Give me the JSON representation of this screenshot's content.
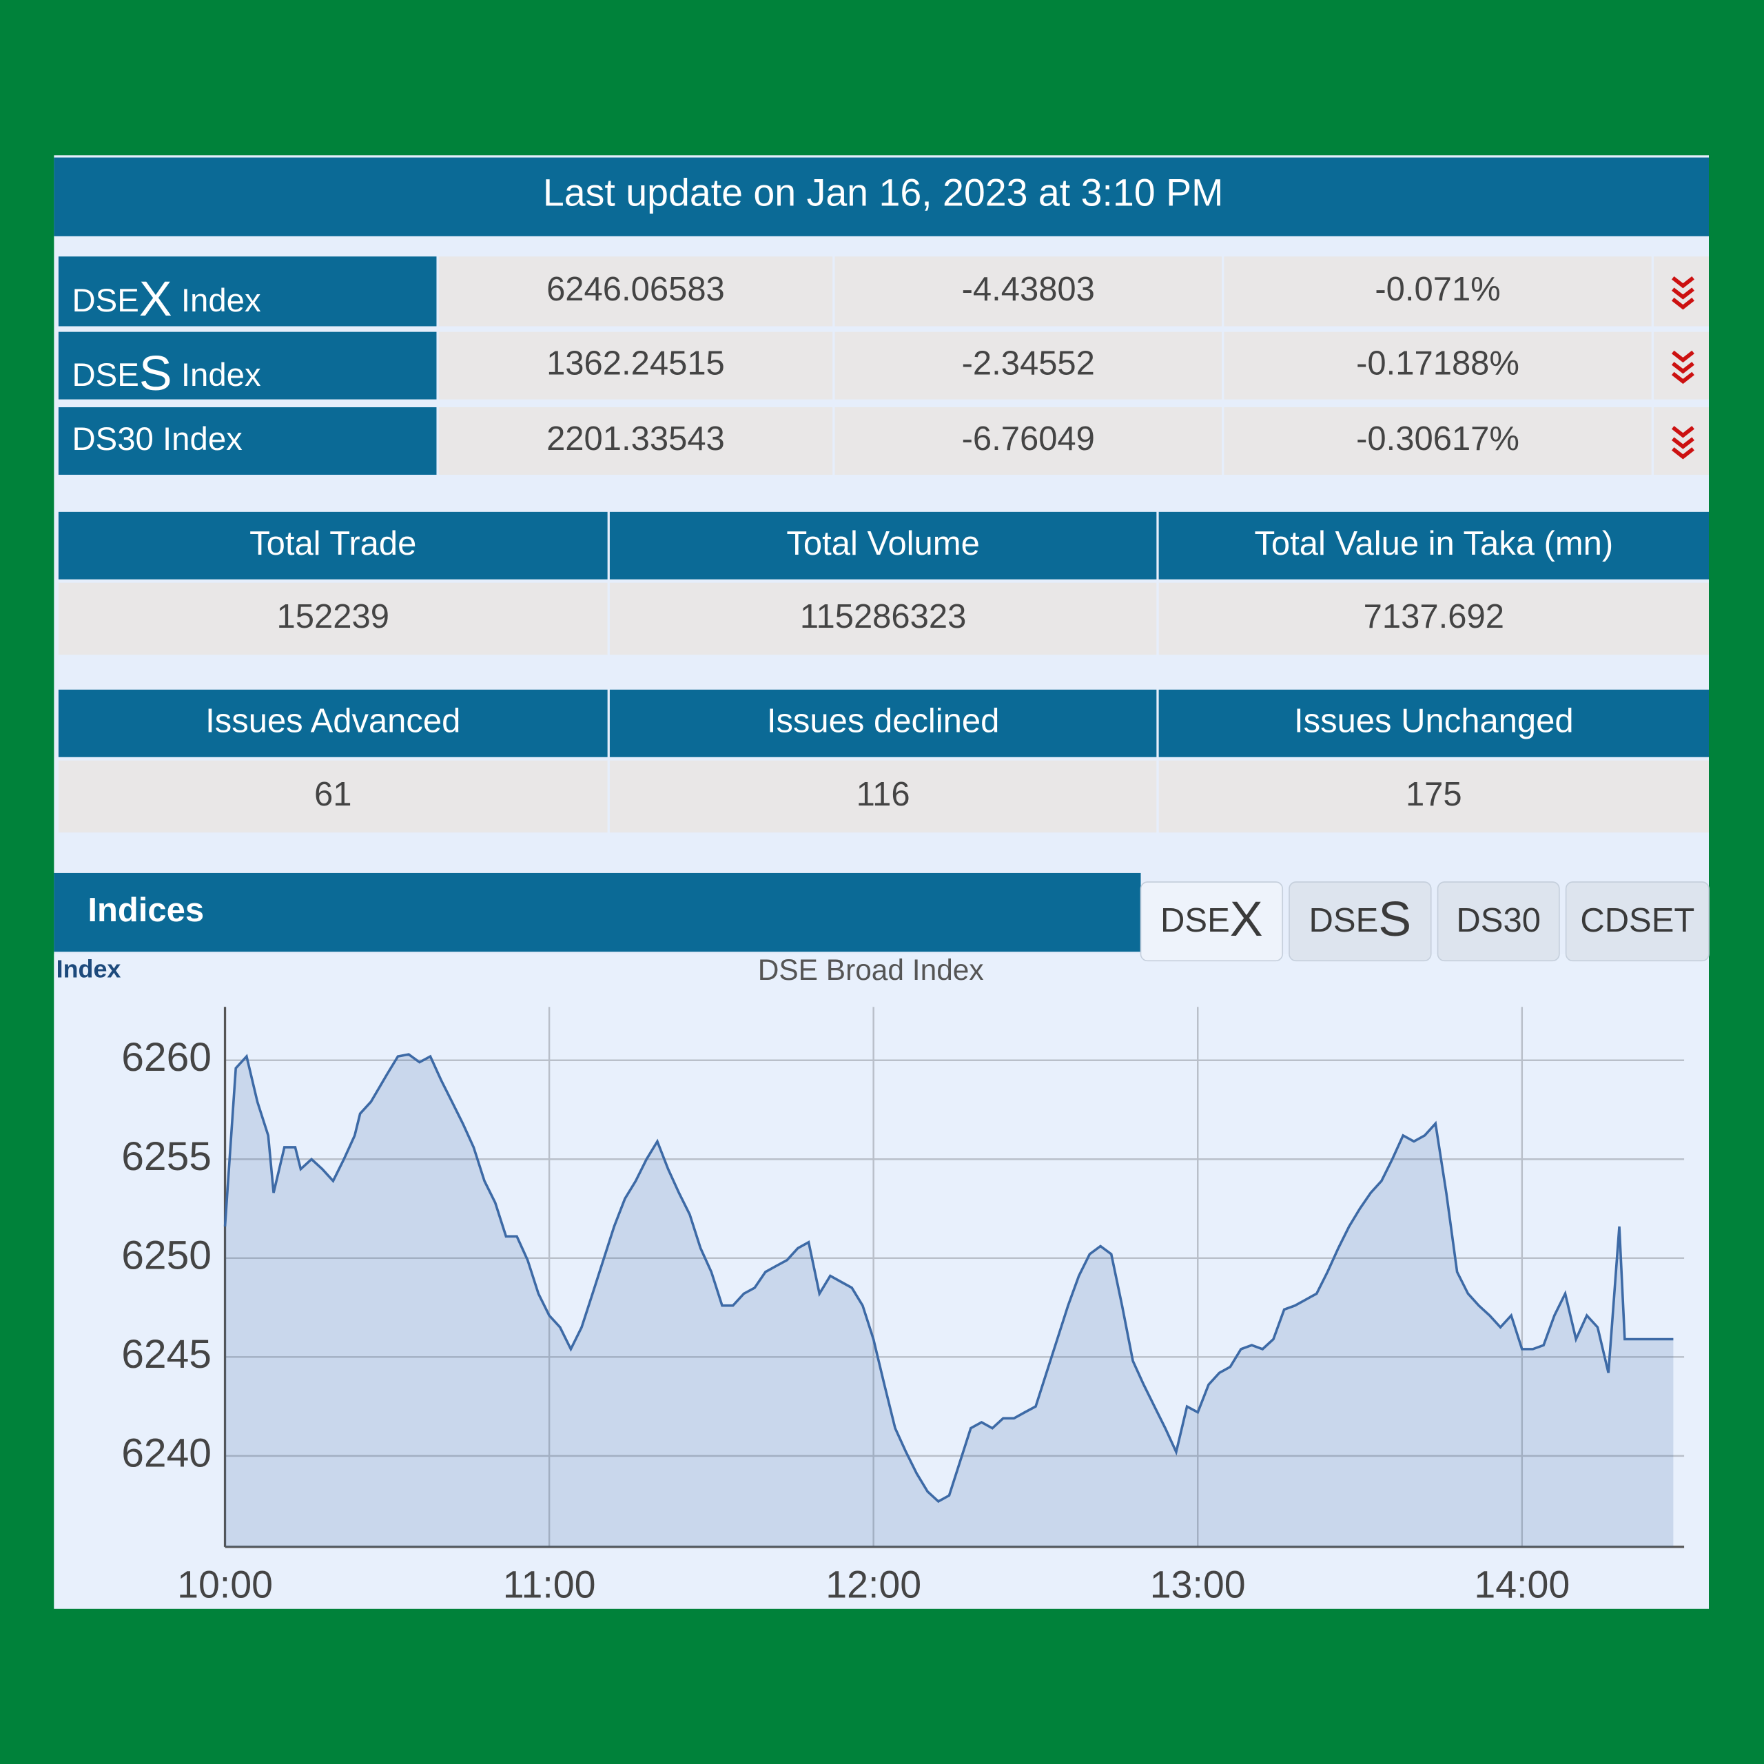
{
  "header": {
    "title": "Last update on Jan 16, 2023 at 3:10 PM"
  },
  "indices": [
    {
      "name": [
        "DSE",
        "X",
        " Index"
      ],
      "value": "6246.06583",
      "change": "-4.43803",
      "percent": "-0.071%"
    },
    {
      "name": [
        "DSE",
        "S",
        " Index"
      ],
      "value": "1362.24515",
      "change": "-2.34552",
      "percent": "-0.17188%"
    },
    {
      "name": [
        "DS30 Index"
      ],
      "value": "2201.33543",
      "change": "-6.76049",
      "percent": "-0.30617%"
    }
  ],
  "stats": [
    {
      "headers": [
        "Total Trade",
        "Total Volume",
        "Total Value in Taka (mn)"
      ],
      "values": [
        "152239",
        "115286323",
        "7137.692"
      ]
    },
    {
      "headers": [
        "Issues Advanced",
        "Issues declined",
        "Issues Unchanged"
      ],
      "values": [
        "61",
        "116",
        "175"
      ]
    }
  ],
  "section": {
    "title": "Indices",
    "tabs": [
      [
        "DSE",
        "X"
      ],
      [
        "DSE",
        "S"
      ],
      [
        "DS30"
      ],
      [
        "CDSET"
      ]
    ]
  },
  "chart_data": {
    "type": "line",
    "title": "DSE Broad Index",
    "y_label": "Index",
    "color": "#3d6aa6",
    "grid": true,
    "xlim": [
      "10:00",
      "14:30"
    ],
    "xticks": [
      "10:00",
      "11:00",
      "12:00",
      "13:00",
      "14:00"
    ],
    "ylim": [
      6235.4,
      6262.7
    ],
    "yticks": [
      6240,
      6245,
      6250,
      6255,
      6260
    ],
    "x": [
      "10:00",
      "10:02",
      "10:04",
      "10:06",
      "10:08",
      "10:09",
      "10:11",
      "10:13",
      "10:14",
      "10:16",
      "10:18",
      "10:20",
      "10:22",
      "10:24",
      "10:25",
      "10:27",
      "10:30",
      "10:32",
      "10:34",
      "10:36",
      "10:38",
      "10:40",
      "10:42",
      "10:44",
      "10:46",
      "10:48",
      "10:50",
      "10:52",
      "10:54",
      "10:56",
      "10:58",
      "11:00",
      "11:02",
      "11:04",
      "11:06",
      "11:08",
      "11:10",
      "11:12",
      "11:14",
      "11:16",
      "11:18",
      "11:20",
      "11:22",
      "11:24",
      "11:26",
      "11:28",
      "11:30",
      "11:32",
      "11:34",
      "11:36",
      "11:38",
      "11:40",
      "11:42",
      "11:44",
      "11:46",
      "11:48",
      "11:50",
      "11:52",
      "11:54",
      "11:56",
      "11:58",
      "12:00",
      "12:02",
      "12:04",
      "12:06",
      "12:08",
      "12:10",
      "12:12",
      "12:14",
      "12:16",
      "12:18",
      "12:20",
      "12:22",
      "12:24",
      "12:26",
      "12:28",
      "12:30",
      "12:32",
      "12:34",
      "12:36",
      "12:38",
      "12:40",
      "12:42",
      "12:44",
      "12:46",
      "12:48",
      "12:50",
      "12:52",
      "12:54",
      "12:56",
      "12:58",
      "13:00",
      "13:02",
      "13:04",
      "13:06",
      "13:08",
      "13:10",
      "13:12",
      "13:14",
      "13:16",
      "13:18",
      "13:20",
      "13:22",
      "13:24",
      "13:26",
      "13:28",
      "13:30",
      "13:32",
      "13:34",
      "13:36",
      "13:38",
      "13:40",
      "13:42",
      "13:44",
      "13:46",
      "13:48",
      "13:50",
      "13:52",
      "13:54",
      "13:56",
      "13:58",
      "14:00",
      "14:02",
      "14:04",
      "14:06",
      "14:08",
      "14:10",
      "14:12",
      "14:14",
      "14:16",
      "14:18",
      "14:19",
      "14:22",
      "14:28"
    ],
    "values": [
      6251.6,
      6259.6,
      6260.2,
      6257.9,
      6256.2,
      6253.3,
      6255.6,
      6255.6,
      6254.5,
      6255.0,
      6254.5,
      6253.9,
      6255.0,
      6256.2,
      6257.3,
      6257.9,
      6259.3,
      6260.2,
      6260.3,
      6259.9,
      6260.2,
      6259.0,
      6257.9,
      6256.8,
      6255.6,
      6253.9,
      6252.8,
      6251.1,
      6251.1,
      6249.9,
      6248.2,
      6247.1,
      6246.5,
      6245.4,
      6246.5,
      6248.2,
      6249.9,
      6251.6,
      6253.0,
      6253.9,
      6255.0,
      6255.9,
      6254.5,
      6253.3,
      6252.2,
      6250.5,
      6249.3,
      6247.6,
      6247.6,
      6248.2,
      6248.5,
      6249.3,
      6249.6,
      6249.9,
      6250.5,
      6250.8,
      6248.2,
      6249.1,
      6248.8,
      6248.5,
      6247.6,
      6245.9,
      6243.6,
      6241.4,
      6240.2,
      6239.1,
      6238.2,
      6237.7,
      6238.0,
      6239.7,
      6241.4,
      6241.7,
      6241.4,
      6241.9,
      6241.9,
      6242.2,
      6242.5,
      6244.2,
      6245.9,
      6247.6,
      6249.1,
      6250.2,
      6250.6,
      6250.2,
      6247.6,
      6244.8,
      6243.6,
      6242.5,
      6241.4,
      6240.2,
      6242.5,
      6242.2,
      6243.6,
      6244.2,
      6244.5,
      6245.4,
      6245.6,
      6245.4,
      6245.9,
      6247.4,
      6247.6,
      6247.9,
      6248.2,
      6249.3,
      6250.5,
      6251.6,
      6252.5,
      6253.3,
      6253.9,
      6255.0,
      6256.2,
      6255.9,
      6256.2,
      6256.8,
      6253.3,
      6249.3,
      6248.2,
      6247.6,
      6247.1,
      6246.5,
      6247.1,
      6245.4,
      6245.4,
      6245.6,
      6247.1,
      6248.2,
      6245.9,
      6247.1,
      6246.5,
      6244.2,
      6251.6,
      6245.9,
      6245.9,
      6245.9
    ]
  }
}
